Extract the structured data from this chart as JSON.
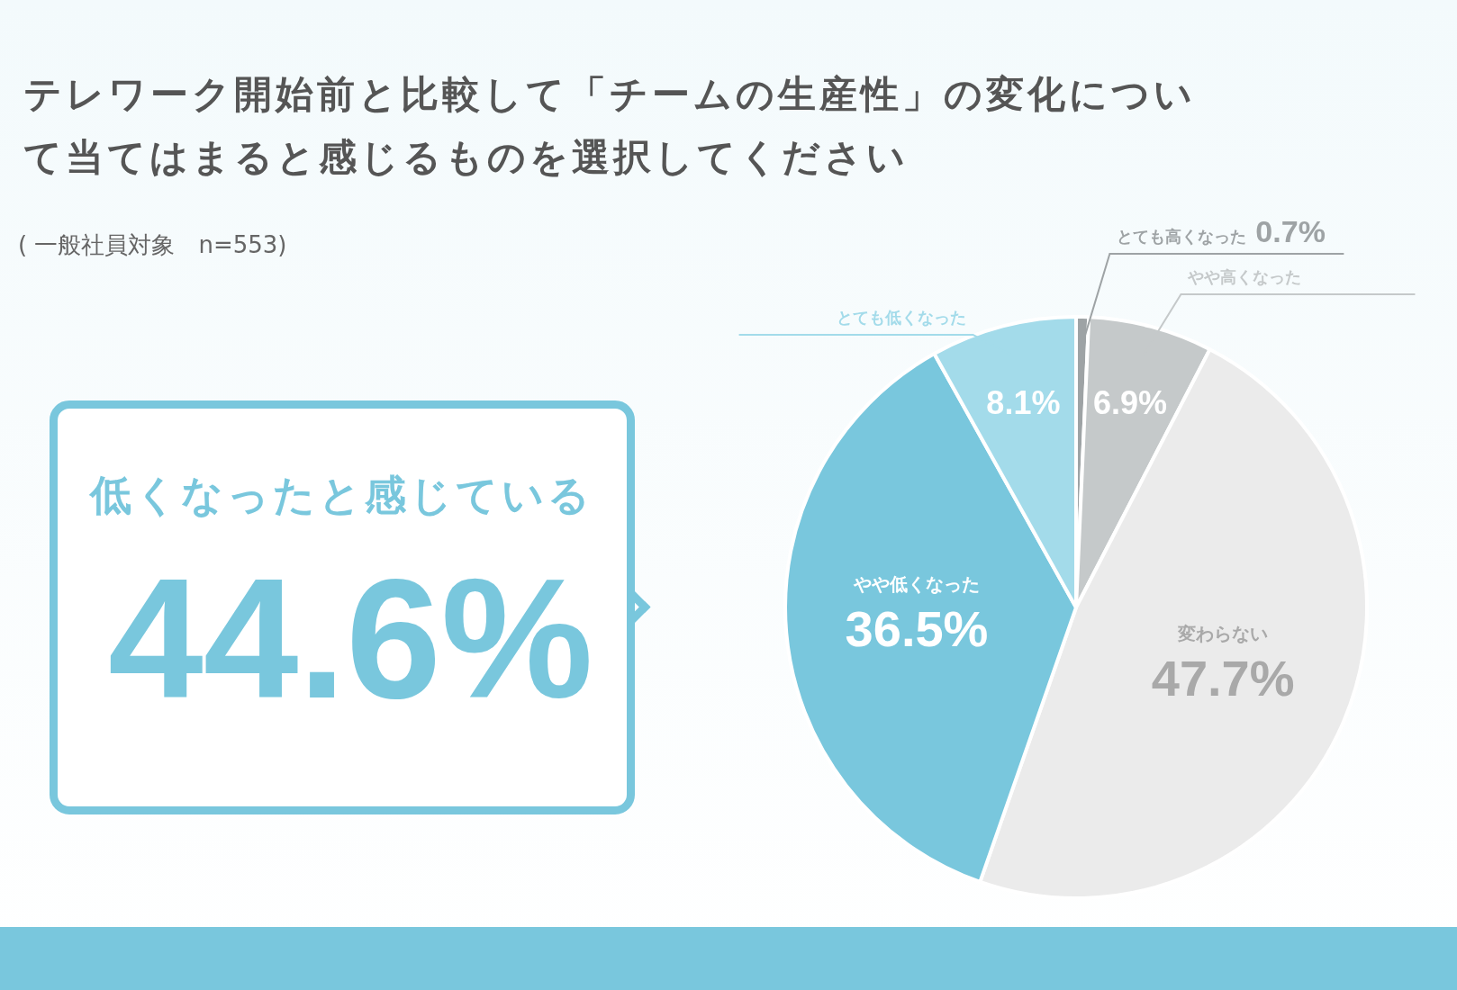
{
  "chart_data": {
    "type": "pie",
    "title": "テレワーク開始前と比較して「チームの生産性」の変化について当てはまると感じるものを選択してください",
    "subtitle": "( 一般社員対象　n=553)",
    "categories": [
      "とても高くなった",
      "やや高くなった",
      "変わらない",
      "やや低くなった",
      "とても低くなった"
    ],
    "values": [
      0.7,
      6.9,
      47.7,
      36.5,
      8.1
    ],
    "colors": [
      "#9ea3a5",
      "#c5c9ca",
      "#ebebeb",
      "#79c7dd",
      "#a3dbea"
    ],
    "value_labels": [
      "0.7%",
      "6.9%",
      "47.7%",
      "36.5%",
      "8.1%"
    ],
    "annotations": [
      "低くなったと感じている",
      "44.6%"
    ],
    "legend": false
  }
}
